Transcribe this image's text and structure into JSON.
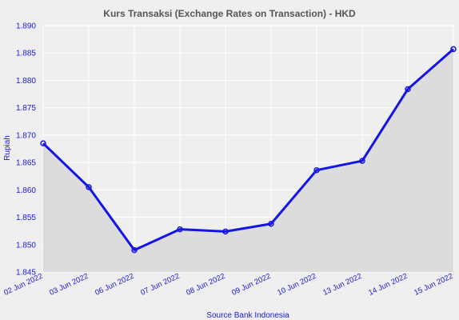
{
  "chart_data": {
    "type": "area",
    "title": "Kurs Transaksi (Exchange Rates on Transaction) - HKD",
    "xlabel": "Source Bank Indonesia",
    "ylabel": "Rupiah",
    "categories": [
      "02 Jun 2022",
      "03 Jun 2022",
      "06 Jun 2022",
      "07 Jun 2022",
      "08 Jun 2022",
      "09 Jun 2022",
      "10 Jun 2022",
      "13 Jun 2022",
      "14 Jun 2022",
      "15 Jun 2022"
    ],
    "series": [
      {
        "values": [
          1.8685,
          1.8605,
          1.849,
          1.8528,
          1.8524,
          1.8538,
          1.8636,
          1.8653,
          1.8784,
          1.8857
        ]
      }
    ],
    "ylim": [
      1.845,
      1.89
    ],
    "yticks": [
      "1.845",
      "1.850",
      "1.855",
      "1.860",
      "1.865",
      "1.870",
      "1.875",
      "1.880",
      "1.885",
      "1.890"
    ],
    "grid": true,
    "legend": "none",
    "colors": {
      "line": "#1414e6",
      "fill": "#d9d9d9",
      "grid": "#ffffff",
      "text": "#1a1adb",
      "title": "#555555",
      "background": "#efefef"
    }
  }
}
